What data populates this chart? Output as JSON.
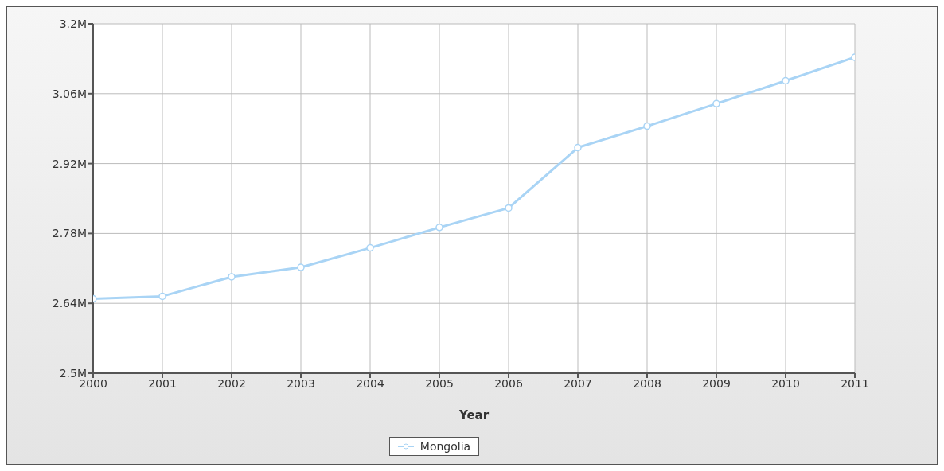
{
  "chart_data": {
    "type": "line",
    "xlabel": "Year",
    "x": [
      2000,
      2001,
      2002,
      2003,
      2004,
      2005,
      2006,
      2007,
      2008,
      2009,
      2010,
      2011
    ],
    "series": [
      {
        "name": "Mongolia",
        "color": "#a9d4f5",
        "values": [
          2.649,
          2.654,
          2.693,
          2.712,
          2.751,
          2.792,
          2.831,
          2.952,
          2.995,
          3.04,
          3.086,
          3.133
        ]
      }
    ],
    "xlim": [
      2000,
      2011
    ],
    "xticks": [
      2000,
      2001,
      2002,
      2003,
      2004,
      2005,
      2006,
      2007,
      2008,
      2009,
      2010,
      2011
    ],
    "ylim": [
      2.5,
      3.2
    ],
    "yticks": [
      {
        "value": 2.5,
        "label": "2.5M"
      },
      {
        "value": 2.64,
        "label": "2.64M"
      },
      {
        "value": 2.78,
        "label": "2.78M"
      },
      {
        "value": 2.92,
        "label": "2.92M"
      },
      {
        "value": 3.06,
        "label": "3.06M"
      },
      {
        "value": 3.2,
        "label": "3.2M"
      }
    ],
    "grid": true,
    "legend": "bottom",
    "marker": "circle",
    "line_style": "solid"
  }
}
